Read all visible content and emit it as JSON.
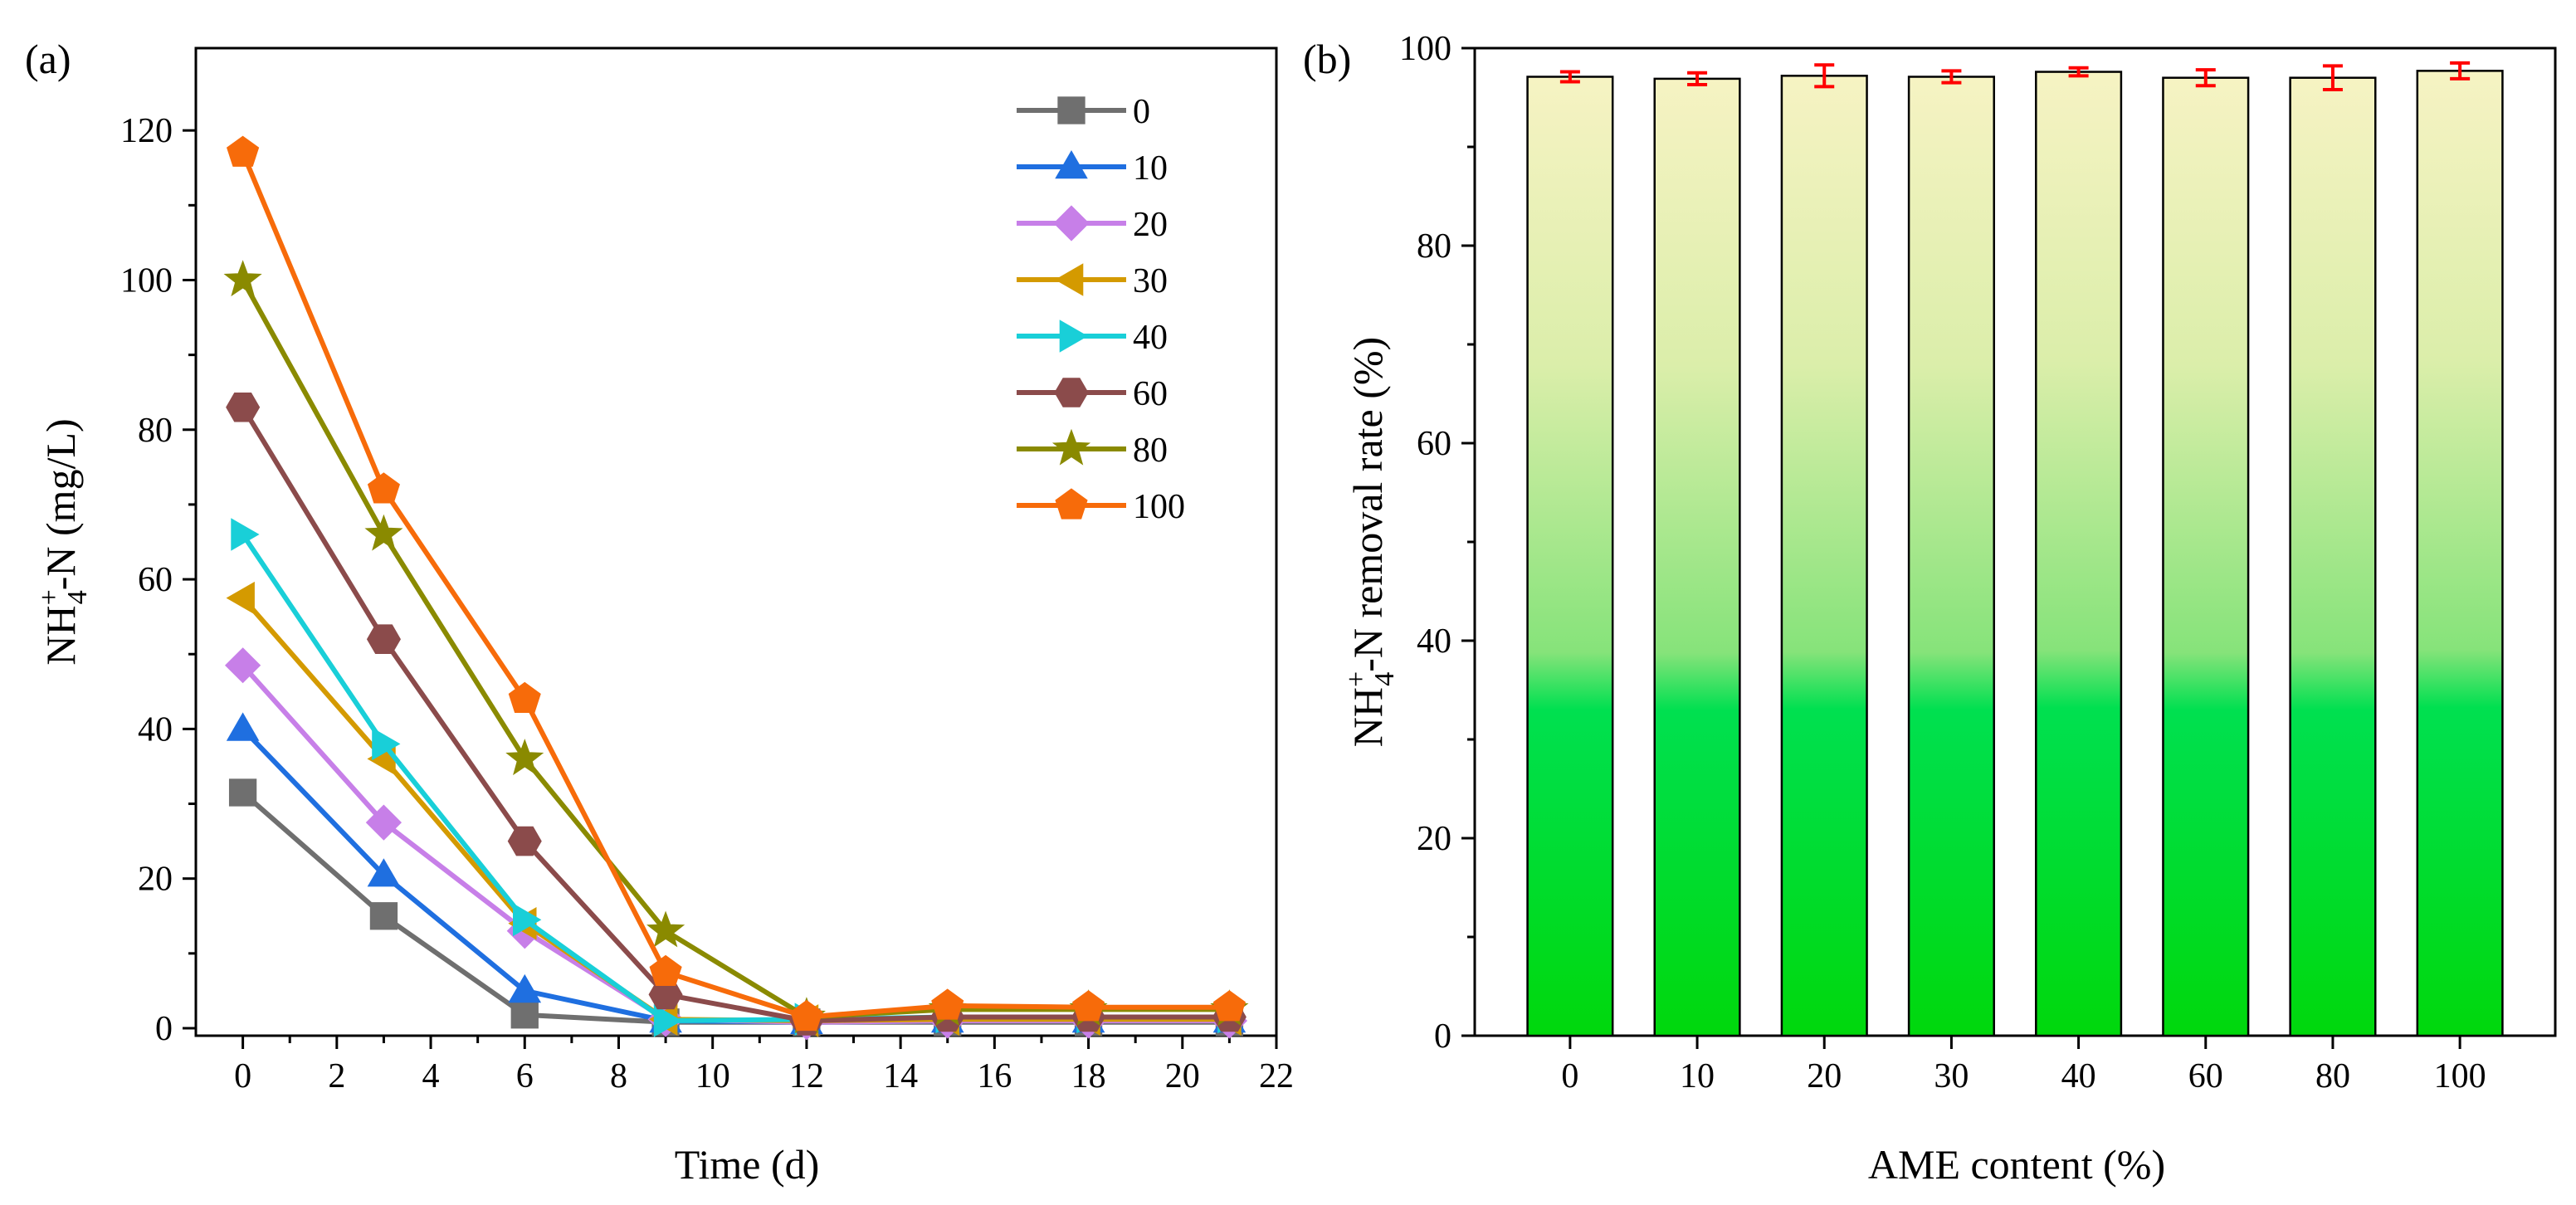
{
  "panels": {
    "a": {
      "label": "(a)"
    },
    "b": {
      "label": "(b)"
    }
  },
  "chart_data": [
    {
      "type": "line",
      "panel": "a",
      "xlabel": "Time (d)",
      "ylabel": {
        "main": "NH",
        "sub": "4",
        "sup": "+",
        "rest": "-N (mg/L)"
      },
      "xlim": [
        -1,
        22
      ],
      "ylim": [
        -1,
        131
      ],
      "xticks": [
        0,
        2,
        4,
        6,
        8,
        10,
        12,
        14,
        16,
        18,
        20,
        22
      ],
      "yticks": [
        0,
        20,
        40,
        60,
        80,
        100,
        120
      ],
      "x": [
        0,
        3,
        6,
        9,
        12,
        15,
        18,
        21
      ],
      "legend_position": "top-right",
      "series": [
        {
          "name": "0",
          "color": "#6f6f6f",
          "marker": "square",
          "values": [
            31.5,
            15,
            1.8,
            0.8,
            0.8,
            0.8,
            0.8,
            0.8
          ]
        },
        {
          "name": "10",
          "color": "#1f6fe0",
          "marker": "triangle-up",
          "values": [
            40,
            20.5,
            5,
            1,
            0.8,
            1,
            1,
            1
          ]
        },
        {
          "name": "20",
          "color": "#c77fe8",
          "marker": "diamond",
          "values": [
            48.5,
            27.5,
            13,
            1.2,
            0.8,
            1,
            1,
            1
          ]
        },
        {
          "name": "30",
          "color": "#d49a00",
          "marker": "triangle-left",
          "values": [
            57.5,
            36,
            14,
            1.2,
            1,
            1.2,
            1.2,
            1.2
          ]
        },
        {
          "name": "40",
          "color": "#19cfd8",
          "marker": "triangle-right",
          "values": [
            66,
            38,
            14.5,
            1,
            1.2,
            1.5,
            1.5,
            1.5
          ]
        },
        {
          "name": "60",
          "color": "#8b4b4b",
          "marker": "hexagon",
          "values": [
            83,
            52,
            25,
            4.5,
            1,
            1.5,
            1.5,
            1.5
          ]
        },
        {
          "name": "80",
          "color": "#8a8a00",
          "marker": "star",
          "values": [
            100,
            66,
            36,
            13,
            1.5,
            2.5,
            2.5,
            2.5
          ]
        },
        {
          "name": "100",
          "color": "#f76b0a",
          "marker": "pentagon",
          "values": [
            117,
            72,
            44,
            7.5,
            1.5,
            3,
            2.8,
            2.8
          ]
        }
      ]
    },
    {
      "type": "bar",
      "panel": "b",
      "xlabel": "AME content (%)",
      "ylabel": {
        "main": "NH",
        "sub": "4",
        "sup": "+",
        "rest": "-N removal rate (%)"
      },
      "ylim": [
        0,
        100
      ],
      "yticks": [
        0,
        20,
        40,
        60,
        80,
        100
      ],
      "categories": [
        "0",
        "10",
        "20",
        "30",
        "40",
        "60",
        "80",
        "100"
      ],
      "values": [
        97.1,
        96.9,
        97.2,
        97.1,
        97.6,
        97.0,
        97.0,
        97.7
      ],
      "errors": [
        0.5,
        0.6,
        1.1,
        0.6,
        0.4,
        0.8,
        1.2,
        0.8
      ],
      "colors": {
        "bar_top": "#f6f3c3",
        "bar_mid": "#a9e88e",
        "bar_bottom": "#00d80c",
        "error": "#ff0000"
      }
    }
  ]
}
